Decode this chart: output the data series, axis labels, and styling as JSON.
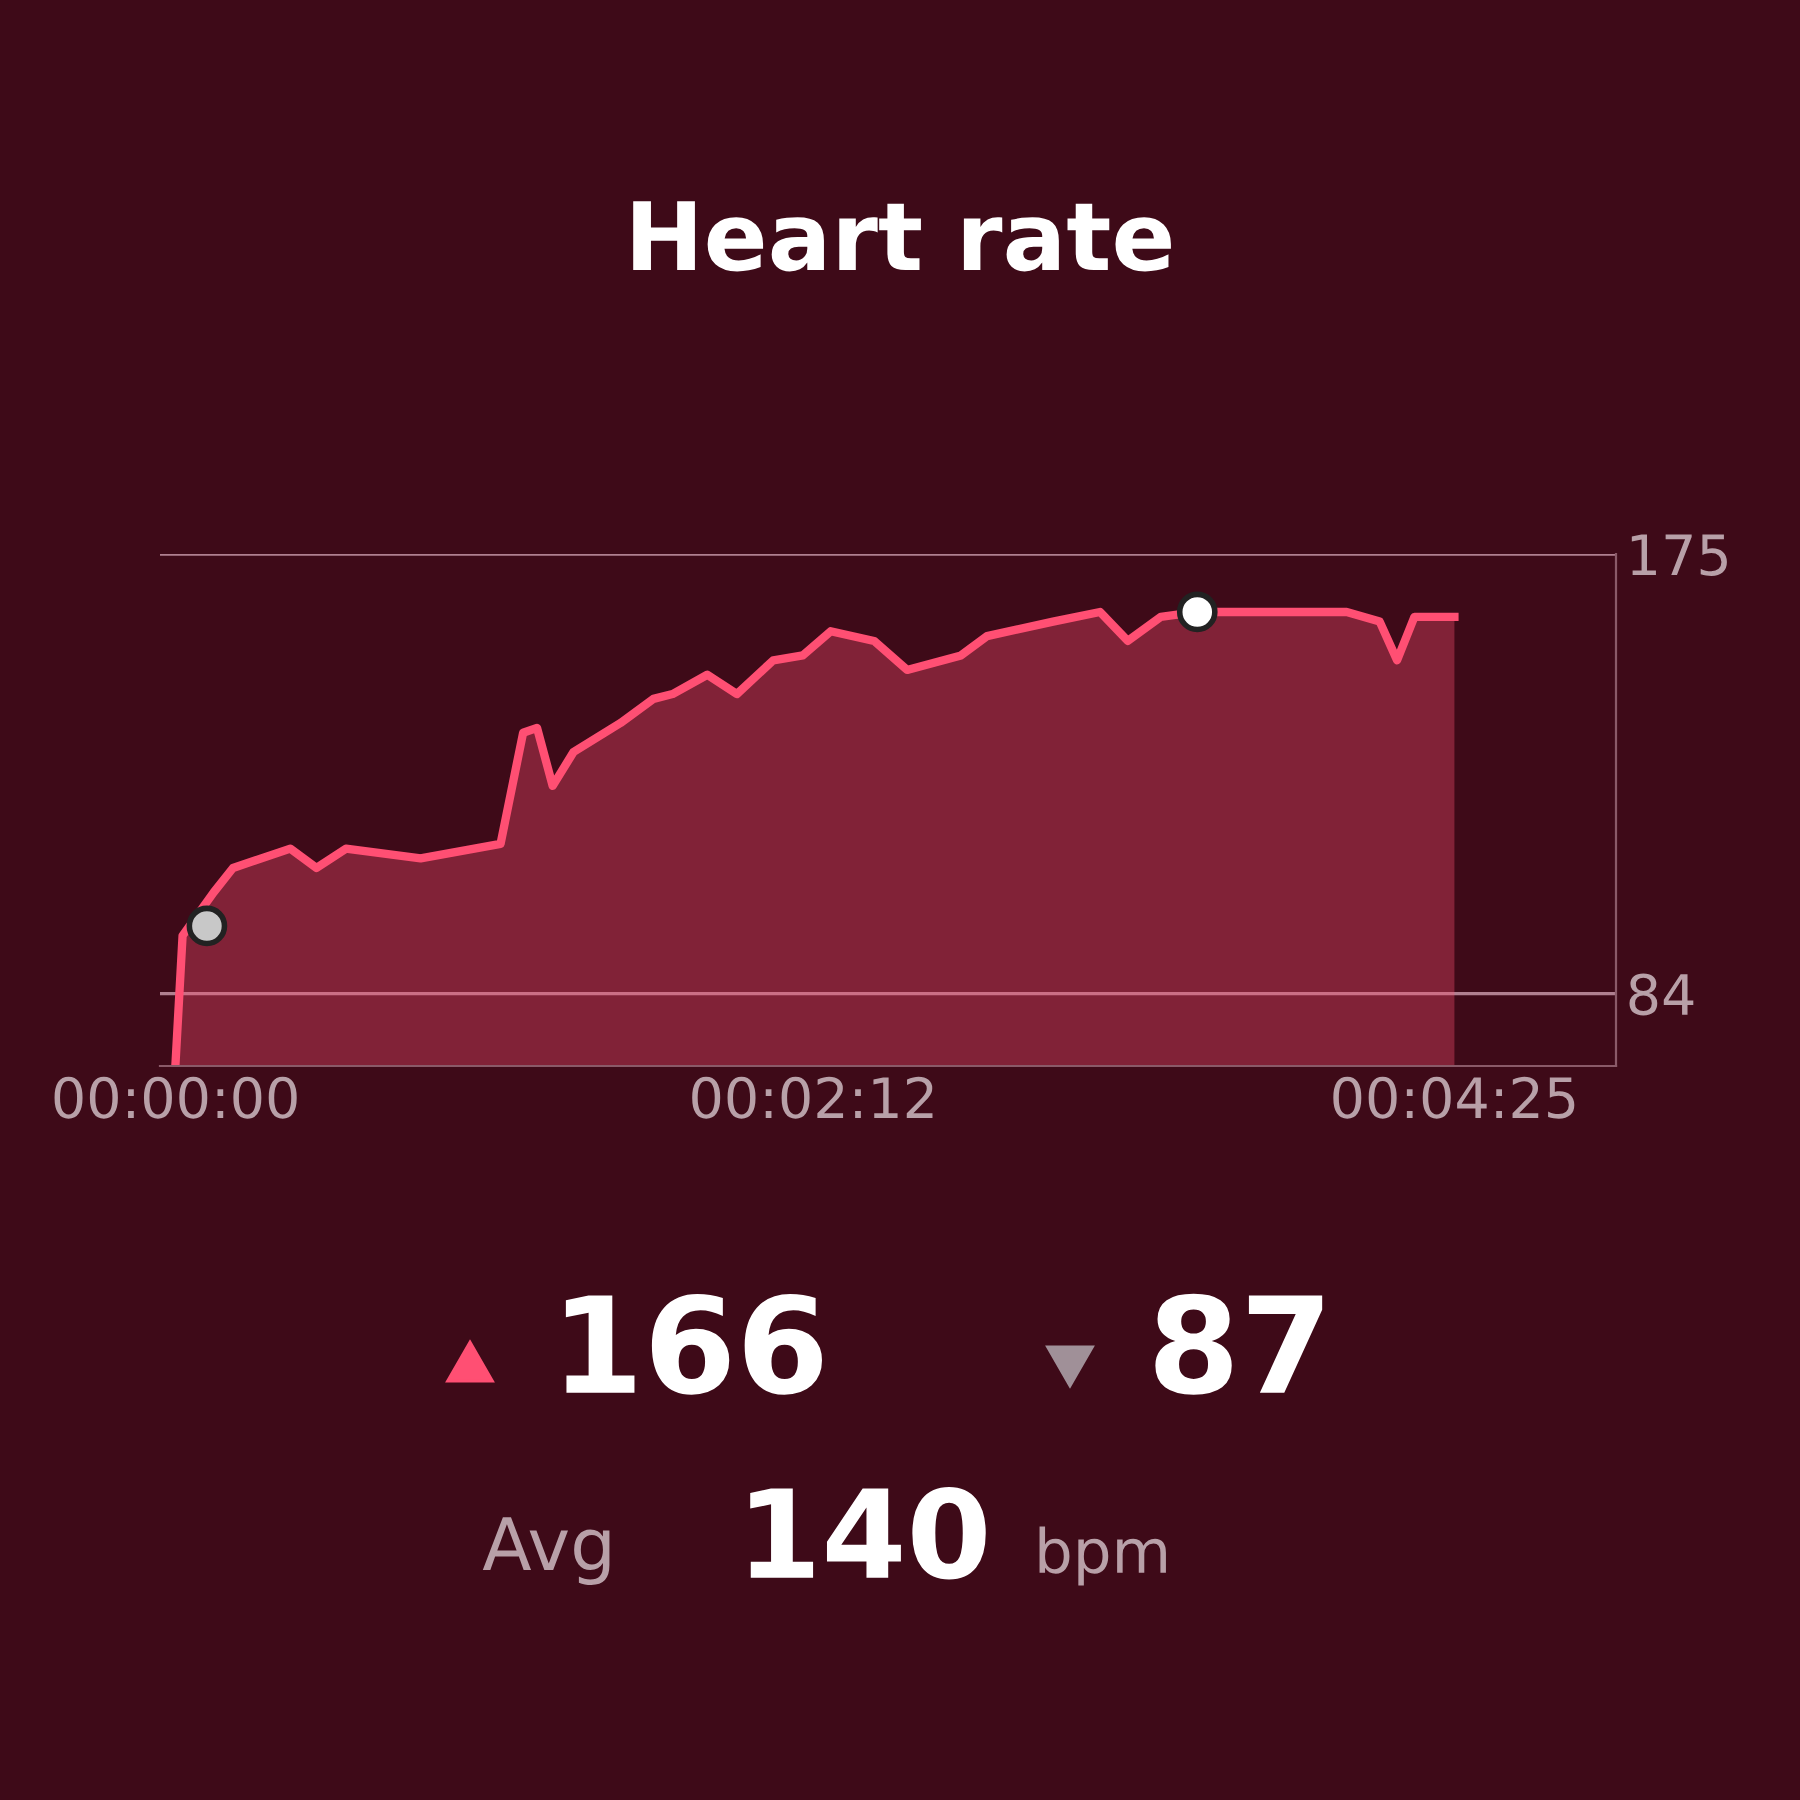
{
  "chart_data": {
    "type": "area",
    "title": "Heart rate",
    "x": [
      0,
      0.0004,
      0.0022,
      0.0033,
      0.0066,
      0.0081,
      0.0098,
      0.0141,
      0.0187,
      0.02,
      0.0208,
      0.0217,
      0.0229,
      0.0256,
      0.0275,
      0.0286,
      0.0306,
      0.0323,
      0.0344,
      0.0361,
      0.0377,
      0.0402,
      0.0421,
      0.0452,
      0.0467,
      0.0505,
      0.0532,
      0.0548,
      0.0567,
      0.0588,
      0.0624,
      0.0674,
      0.0693,
      0.0703,
      0.0713,
      0.0736
    ],
    "series": [
      {
        "color": "#ff4f73",
        "values": [
          70,
          96,
          105,
          110,
          114,
          110,
          114,
          112,
          115,
          138,
          139,
          127,
          134,
          140,
          145,
          146,
          150,
          146,
          153,
          154,
          159,
          157,
          151,
          154,
          158,
          161,
          163,
          157,
          162,
          163,
          163,
          163,
          161,
          153,
          162,
          162
        ]
      },
      {
        "type": "scatter",
        "x": [
          0.0018,
          0.0588
        ],
        "values": [
          98,
          163
        ],
        "colors": [
          "#c8c8c8",
          "#ffffff"
        ]
      }
    ],
    "xlim": [
      -0.0009,
      0.0829
    ],
    "ylim": [
      69,
      175
    ],
    "xticks": [
      {
        "value": 0,
        "label": "00:00:00"
      },
      {
        "value": 0.0367,
        "label": "00:02:12"
      },
      {
        "value": 0.0736,
        "label": "00:04:25"
      }
    ],
    "yticks": [
      84,
      175
    ],
    "ref_lines": [
      {
        "axis": "y",
        "value": 84,
        "color": "#b08090"
      },
      {
        "axis": "y",
        "value": 175,
        "color": "#b08090"
      }
    ],
    "annotations": [
      "166",
      "87",
      "Avg",
      "140",
      "bpm"
    ]
  }
}
